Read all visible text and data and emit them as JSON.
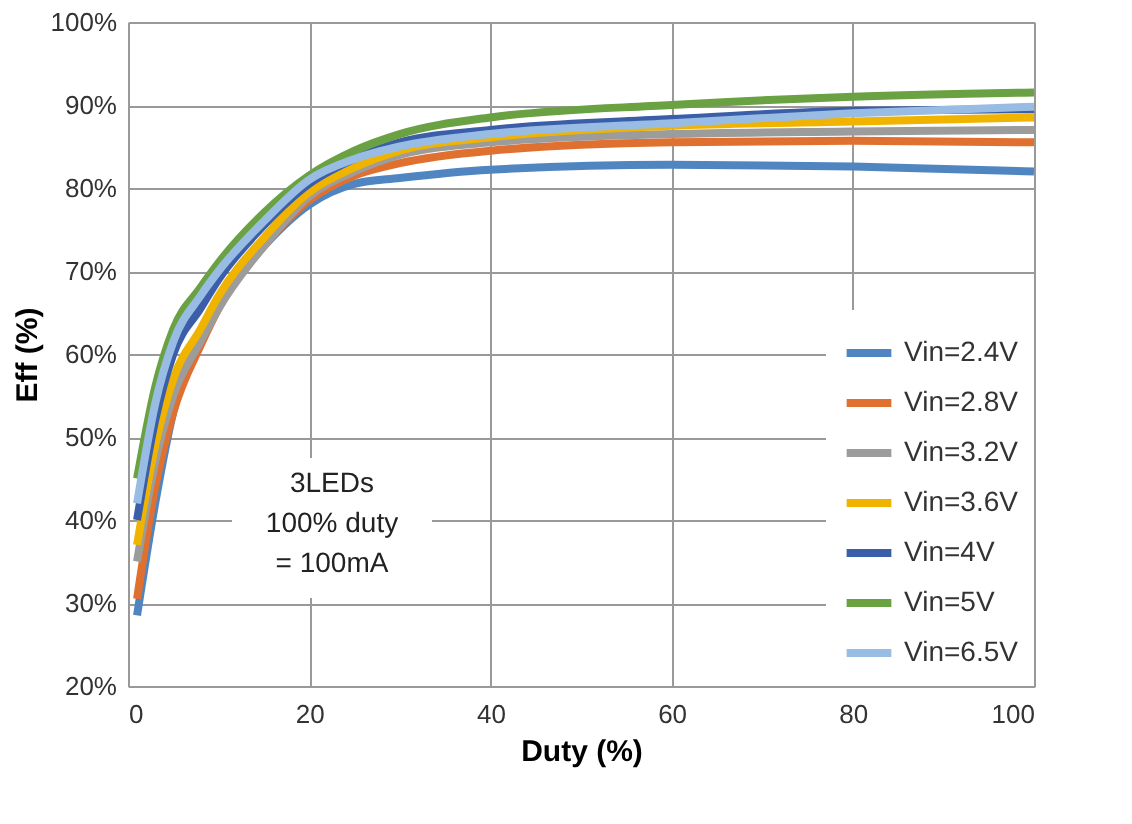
{
  "chart_data": {
    "type": "line",
    "xlabel": "Duty (%)",
    "ylabel": "Eff (%)",
    "x": [
      1,
      3,
      5,
      8,
      10,
      15,
      20,
      25,
      30,
      40,
      60,
      80,
      100
    ],
    "series": [
      {
        "name": "Vin=2.4V",
        "color": "#4f86c1",
        "values": [
          28.5,
          42,
          53,
          62,
          66,
          73,
          78,
          80.5,
          81.2,
          82.2,
          82.8,
          82.6,
          82
        ]
      },
      {
        "name": "Vin=2.8V",
        "color": "#e07030",
        "values": [
          30.5,
          44,
          53,
          61,
          65.5,
          73,
          78.5,
          81.5,
          83,
          84.5,
          85.5,
          85.7,
          85.5
        ]
      },
      {
        "name": "Vin=3.2V",
        "color": "#9c9c9c",
        "values": [
          35,
          47,
          55,
          61.5,
          65.5,
          73,
          79,
          82,
          84,
          85.5,
          86.5,
          86.8,
          87
        ]
      },
      {
        "name": "Vin=3.6V",
        "color": "#f0b400",
        "values": [
          37,
          49,
          57,
          63,
          67,
          74,
          79.5,
          82.5,
          84.5,
          86.1,
          87.5,
          88,
          88.5
        ]
      },
      {
        "name": "Vin=4V",
        "color": "#3a5ea8",
        "values": [
          40,
          52,
          60,
          65.5,
          69,
          75.5,
          80.5,
          83.5,
          85.5,
          87,
          88.3,
          89.3,
          89.5
        ]
      },
      {
        "name": "Vin=5V",
        "color": "#6aa243",
        "values": [
          45,
          56,
          63,
          68,
          71,
          77,
          81.5,
          84.5,
          86.5,
          88.5,
          90,
          91,
          91.5
        ]
      },
      {
        "name": "Vin=6.5V",
        "color": "#98bce3",
        "values": [
          42,
          54,
          61.5,
          67,
          70,
          76,
          81,
          83.5,
          85,
          86.5,
          87.8,
          89,
          89.8
        ]
      }
    ],
    "xlim": [
      0,
      100
    ],
    "xticks": [
      0,
      20,
      40,
      60,
      80,
      100
    ],
    "ylim": [
      20,
      100
    ],
    "yticks": [
      {
        "value": 20,
        "label": "20%"
      },
      {
        "value": 30,
        "label": "30%"
      },
      {
        "value": 40,
        "label": "40%"
      },
      {
        "value": 50,
        "label": "50%"
      },
      {
        "value": 60,
        "label": "60%"
      },
      {
        "value": 70,
        "label": "70%"
      },
      {
        "value": 80,
        "label": "80%"
      },
      {
        "value": 90,
        "label": "90%"
      },
      {
        "value": 100,
        "label": "100%"
      }
    ],
    "annotations": [
      "3LEDs\n100% duty\n= 100mA"
    ],
    "grid": true,
    "legend": "bottom right",
    "marker": "none",
    "line_style": "solid"
  }
}
